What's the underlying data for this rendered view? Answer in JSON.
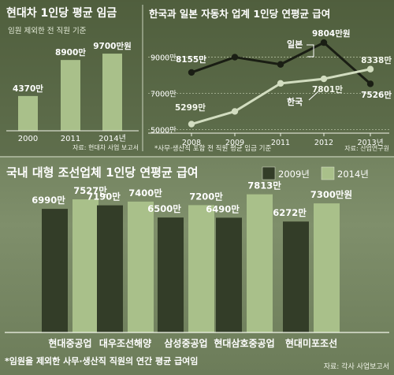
{
  "chart_data": [
    {
      "type": "bar",
      "title": "현대차 1인당 평균 임금",
      "subtitle": "임원 제외한 전 직원 기준",
      "categories": [
        "2000",
        "2011",
        "2014년"
      ],
      "values": [
        4370,
        8900,
        9700
      ],
      "value_labels": [
        "4370만",
        "8900만",
        "9700만원"
      ],
      "ylim": [
        0,
        10500
      ],
      "source": "자료: 현대차 사업 보고서",
      "colors": {
        "bar": "#a9c08a"
      }
    },
    {
      "type": "line",
      "title": "한국과 일본 자동차 업계 1인당 연평균 급여",
      "x": [
        "2008",
        "2009",
        "2011",
        "2012",
        "2013년"
      ],
      "ytick_labels": [
        "9000만",
        "7000만",
        "5000만"
      ],
      "ytick_values": [
        9000,
        7000,
        5000
      ],
      "ylim": [
        4800,
        10200
      ],
      "series": [
        {
          "name": "일본",
          "values": [
            8155,
            9000,
            8600,
            9804,
            7526
          ],
          "value_labels": {
            "0": "8155만",
            "3": "9804만원",
            "4": "7526만"
          },
          "color": "#1a1e14"
        },
        {
          "name": "한국",
          "values": [
            5299,
            6000,
            7550,
            7801,
            8338
          ],
          "value_labels": {
            "0": "5299만",
            "3": "7801만",
            "4": "8338만"
          },
          "color": "#d2ddc0"
        }
      ],
      "note": "*사무·생산직 포함 전 직원 평균 임금 기준",
      "source": "자료: 산업연구원"
    },
    {
      "type": "bar",
      "title": "국내 대형 조선업체 1인당 연평균 급여",
      "legend_position": "top-right",
      "categories": [
        "현대중공업",
        "대우조선해양",
        "삼성중공업",
        "현대삼호중공업",
        "현대미포조선"
      ],
      "ylim": [
        0,
        9000
      ],
      "series": [
        {
          "name": "2009년",
          "values": [
            6990,
            7190,
            6500,
            6490,
            6272
          ],
          "value_labels": [
            "6990만",
            "7190만",
            "6500만",
            "6490만",
            "6272만"
          ],
          "color": "#333d28"
        },
        {
          "name": "2014년",
          "values": [
            7527,
            7400,
            7200,
            7813,
            7300
          ],
          "value_labels": [
            "7527만",
            "7400만",
            "7200만",
            "7813만",
            "7300만원"
          ],
          "color": "#a9c08a"
        }
      ],
      "note": "*임원을 제외한 사무·생산직 직원의 연간 평균 급여임",
      "source": "자료: 각사 사업보고서"
    }
  ]
}
